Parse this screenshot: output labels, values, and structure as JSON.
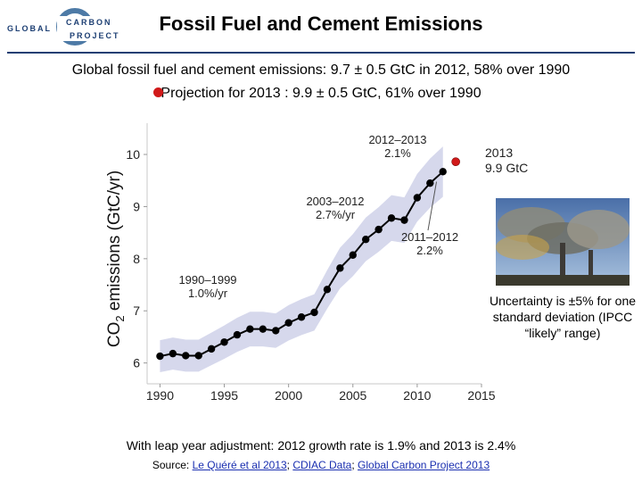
{
  "header": {
    "logo_lines": [
      "GLOBAL",
      "CARBON",
      "PROJECT"
    ],
    "title": "Fossil Fuel and Cement Emissions"
  },
  "subtitle": {
    "line1": "Global fossil fuel and cement emissions: 9.7 ± 0.5 GtC in 2012, 58% over 1990",
    "line2": "Projection for 2013 : 9.9 ± 0.5 GtC, 61% over 1990"
  },
  "side": {
    "projection_label": [
      "2013",
      "9.9 GtC"
    ],
    "uncertainty_note": "Uncertainty is ±5% for one standard deviation (IPCC “likely” range)"
  },
  "notes": {
    "leap_year": "With leap year adjustment: 2012 growth rate is 1.9% and 2013 is 2.4%",
    "source_prefix": "Source: ",
    "source_links": [
      "Le Quéré et al 2013",
      "CDIAC Data",
      "Global Carbon Project 2013"
    ],
    "source_sep": "; "
  },
  "colors": {
    "line": "#000000",
    "band": "#d6d8ec",
    "projection_point": "#d11a1a",
    "title_rule": "#1d3f73"
  },
  "chart_data": {
    "type": "line",
    "ylabel_main": "CO",
    "ylabel_sub": "2",
    "ylabel_rest": " emissions (GtC/yr)",
    "xlim": [
      1989,
      2015
    ],
    "ylim": [
      5.6,
      10.6
    ],
    "xticks": [
      1990,
      1995,
      2000,
      2005,
      2010,
      2015
    ],
    "yticks": [
      6,
      7,
      8,
      9,
      10
    ],
    "series": [
      {
        "x": [
          1990,
          1991,
          1992,
          1993,
          1994,
          1995,
          1996,
          1997,
          1998,
          1999,
          2000,
          2001,
          2002,
          2003,
          2004,
          2005,
          2006,
          2007,
          2008,
          2009,
          2010,
          2011,
          2012
        ],
        "y": [
          6.13,
          6.18,
          6.14,
          6.14,
          6.27,
          6.4,
          6.54,
          6.65,
          6.65,
          6.62,
          6.77,
          6.88,
          6.97,
          7.41,
          7.82,
          8.07,
          8.37,
          8.56,
          8.78,
          8.74,
          9.17,
          9.45,
          9.67
        ],
        "uncertainty_fraction": 0.05
      }
    ],
    "projection": {
      "x": 2013,
      "y": 9.86
    },
    "annotations": [
      {
        "lines": [
          "2012–2013",
          "2.1%"
        ]
      },
      {
        "lines": [
          "2003–2012",
          "2.7%/yr"
        ]
      },
      {
        "lines": [
          "2011–2012",
          "2.2%"
        ]
      },
      {
        "lines": [
          "1990–1999",
          "1.0%/yr"
        ]
      }
    ]
  }
}
